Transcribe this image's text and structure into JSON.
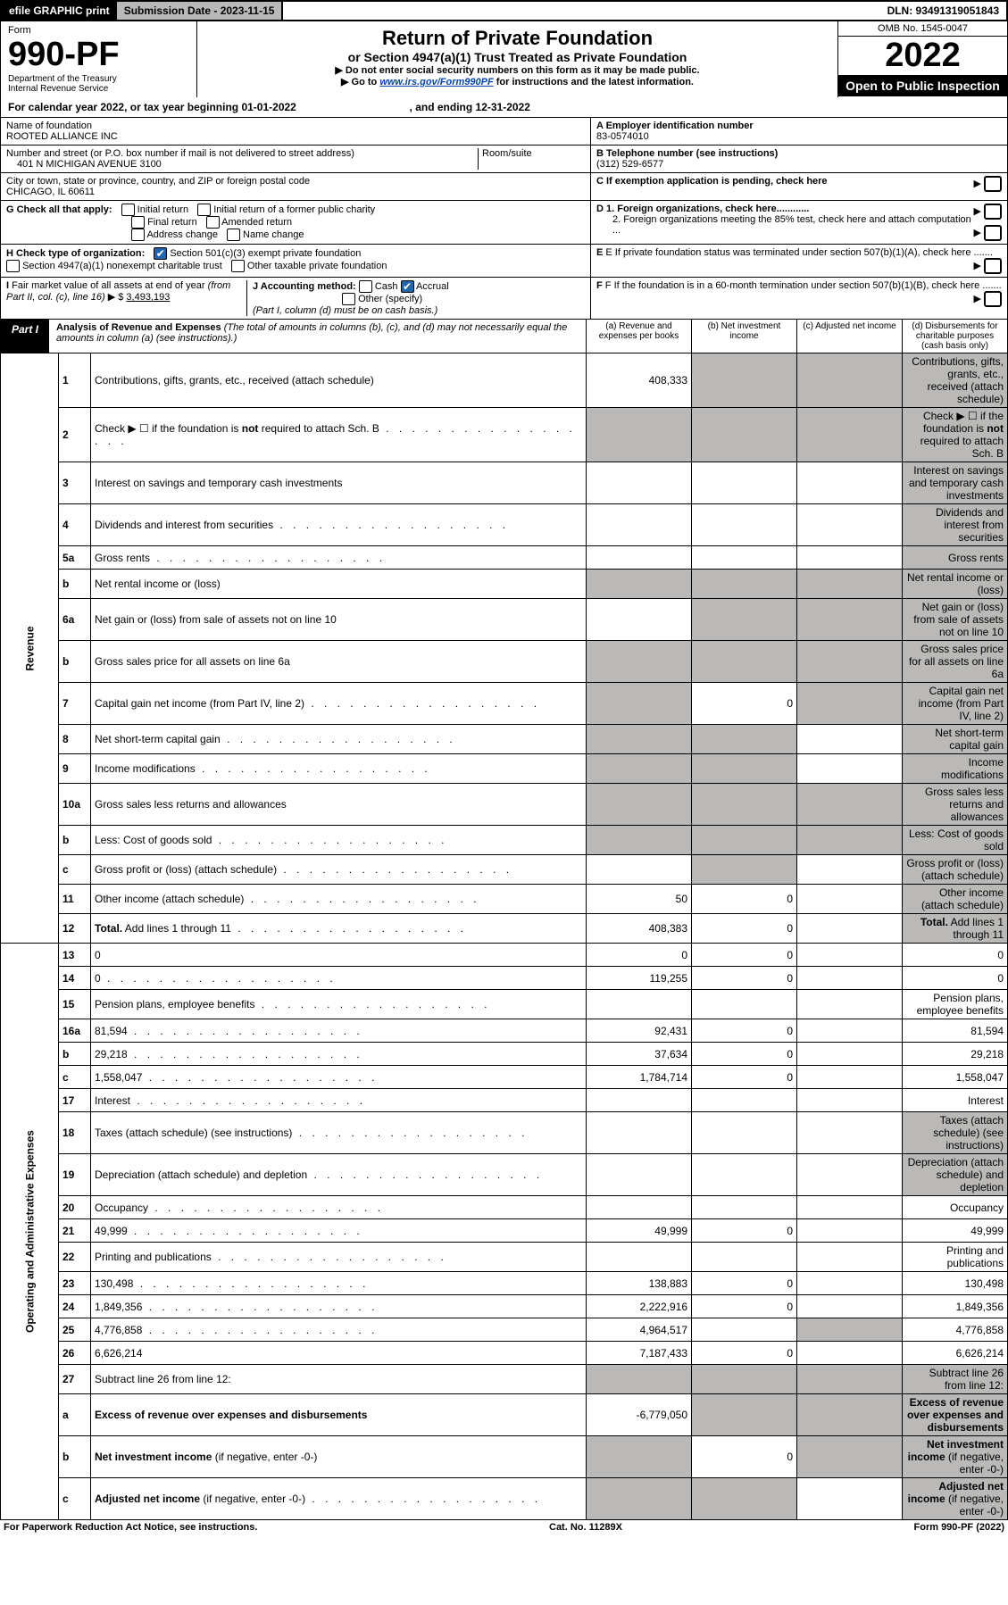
{
  "topbar": {
    "efile": "efile GRAPHIC print",
    "submission_label": "Submission Date - 2023-11-15",
    "dln_label": "DLN: 93491319051843"
  },
  "header": {
    "form_label": "Form",
    "form_number": "990-PF",
    "dept1": "Department of the Treasury",
    "dept2": "Internal Revenue Service",
    "title1": "Return of Private Foundation",
    "title2": "or Section 4947(a)(1) Trust Treated as Private Foundation",
    "instr1": "▶ Do not enter social security numbers on this form as it may be made public.",
    "instr2_pre": "▶ Go to ",
    "instr2_link": "www.irs.gov/Form990PF",
    "instr2_post": " for instructions and the latest information.",
    "omb": "OMB No. 1545-0047",
    "year": "2022",
    "open": "Open to Public Inspection"
  },
  "caly": {
    "pre": "For calendar year 2022, or tax year beginning ",
    "begin": "01-01-2022",
    "mid": " , and ending ",
    "end": "12-31-2022"
  },
  "entity": {
    "name_label": "Name of foundation",
    "name": "ROOTED ALLIANCE INC",
    "addr_label": "Number and street (or P.O. box number if mail is not delivered to street address)",
    "addr": "401 N MICHIGAN AVENUE 3100",
    "room_label": "Room/suite",
    "city_label": "City or town, state or province, country, and ZIP or foreign postal code",
    "city": "CHICAGO, IL  60611",
    "a_label": "A Employer identification number",
    "a_val": "83-0574010",
    "b_label": "B Telephone number (see instructions)",
    "b_val": "(312) 529-6577",
    "c_label": "C If exemption application is pending, check here",
    "d1_label": "D 1. Foreign organizations, check here............",
    "d2_label": "2. Foreign organizations meeting the 85% test, check here and attach computation ...",
    "e_label": "E  If private foundation status was terminated under section 507(b)(1)(A), check here .......",
    "f_label": "F  If the foundation is in a 60-month termination under section 507(b)(1)(B), check here .......",
    "g_label": "G Check all that apply:",
    "g_opts": [
      "Initial return",
      "Final return",
      "Address change",
      "Initial return of a former public charity",
      "Amended return",
      "Name change"
    ],
    "h_label": "H Check type of organization:",
    "h1": "Section 501(c)(3) exempt private foundation",
    "h2": "Section 4947(a)(1) nonexempt charitable trust",
    "h3": "Other taxable private foundation",
    "i_label": "I Fair market value of all assets at end of year (from Part II, col. (c), line 16) ▶ $",
    "i_val": "3,493,193",
    "j_label": "J Accounting method:",
    "j_cash": "Cash",
    "j_accrual": "Accrual",
    "j_other": "Other (specify)",
    "j_note": "(Part I, column (d) must be on cash basis.)"
  },
  "part1": {
    "label": "Part I",
    "title_bold": "Analysis of Revenue and Expenses ",
    "title_ital": "(The total of amounts in columns (b), (c), and (d) may not necessarily equal the amounts in column (a) (see instructions).)",
    "col_a": "(a)    Revenue and expenses per books",
    "col_b": "(b)    Net investment income",
    "col_c": "(c)   Adjusted net income",
    "col_d": "(d)   Disbursements for charitable purposes (cash basis only)"
  },
  "side_rev": "Revenue",
  "side_exp": "Operating and Administrative Expenses",
  "rows": [
    {
      "n": "1",
      "d": "Contributions, gifts, grants, etc., received (attach schedule)",
      "a": "408,333",
      "b_grey": true,
      "c_grey": true,
      "d_grey": true
    },
    {
      "n": "2",
      "d": "Check ▶ ☐ if the foundation is <b>not</b> required to attach Sch. B",
      "dots": true,
      "a_grey": true,
      "b_grey": true,
      "c_grey": true,
      "d_grey": true
    },
    {
      "n": "3",
      "d": "Interest on savings and temporary cash investments",
      "d_grey": true
    },
    {
      "n": "4",
      "d": "Dividends and interest from securities",
      "dots": true,
      "d_grey": true
    },
    {
      "n": "5a",
      "d": "Gross rents",
      "dots": true,
      "d_grey": true
    },
    {
      "n": "b",
      "d": "Net rental income or (loss)",
      "a_grey": true,
      "b_grey": true,
      "c_grey": true,
      "d_grey": true
    },
    {
      "n": "6a",
      "d": "Net gain or (loss) from sale of assets not on line 10",
      "b_grey": true,
      "c_grey": true,
      "d_grey": true
    },
    {
      "n": "b",
      "d": "Gross sales price for all assets on line 6a",
      "a_grey": true,
      "b_grey": true,
      "c_grey": true,
      "d_grey": true
    },
    {
      "n": "7",
      "d": "Capital gain net income (from Part IV, line 2)",
      "dots": true,
      "a_grey": true,
      "b": "0",
      "c_grey": true,
      "d_grey": true
    },
    {
      "n": "8",
      "d": "Net short-term capital gain",
      "dots": true,
      "a_grey": true,
      "b_grey": true,
      "d_grey": true
    },
    {
      "n": "9",
      "d": "Income modifications",
      "dots": true,
      "a_grey": true,
      "b_grey": true,
      "d_grey": true
    },
    {
      "n": "10a",
      "d": "Gross sales less returns and allowances",
      "a_grey": true,
      "b_grey": true,
      "c_grey": true,
      "d_grey": true
    },
    {
      "n": "b",
      "d": "Less: Cost of goods sold",
      "dots": true,
      "a_grey": true,
      "b_grey": true,
      "c_grey": true,
      "d_grey": true
    },
    {
      "n": "c",
      "d": "Gross profit or (loss) (attach schedule)",
      "dots": true,
      "b_grey": true,
      "d_grey": true
    },
    {
      "n": "11",
      "d": "Other income (attach schedule)",
      "dots": true,
      "a": "50",
      "b": "0",
      "d_grey": true
    },
    {
      "n": "12",
      "d": "<b>Total.</b> Add lines 1 through 11",
      "dots": true,
      "a": "408,383",
      "b": "0",
      "d_grey": true
    }
  ],
  "exp_rows": [
    {
      "n": "13",
      "d": "0",
      "a": "0",
      "b": "0"
    },
    {
      "n": "14",
      "d": "0",
      "dots": true,
      "a": "119,255",
      "b": "0"
    },
    {
      "n": "15",
      "d": "Pension plans, employee benefits",
      "dots": true
    },
    {
      "n": "16a",
      "d": "81,594",
      "dots": true,
      "a": "92,431",
      "b": "0"
    },
    {
      "n": "b",
      "d": "29,218",
      "dots": true,
      "a": "37,634",
      "b": "0"
    },
    {
      "n": "c",
      "d": "1,558,047",
      "dots": true,
      "a": "1,784,714",
      "b": "0"
    },
    {
      "n": "17",
      "d": "Interest",
      "dots": true
    },
    {
      "n": "18",
      "d": "Taxes (attach schedule) (see instructions)",
      "dots": true,
      "d_grey": true
    },
    {
      "n": "19",
      "d": "Depreciation (attach schedule) and depletion",
      "dots": true,
      "d_grey": true
    },
    {
      "n": "20",
      "d": "Occupancy",
      "dots": true
    },
    {
      "n": "21",
      "d": "49,999",
      "dots": true,
      "a": "49,999",
      "b": "0"
    },
    {
      "n": "22",
      "d": "Printing and publications",
      "dots": true
    },
    {
      "n": "23",
      "d": "130,498",
      "dots": true,
      "a": "138,883",
      "b": "0"
    },
    {
      "n": "24",
      "d": "1,849,356",
      "dots": true,
      "a": "2,222,916",
      "b": "0"
    },
    {
      "n": "25",
      "d": "4,776,858",
      "dots": true,
      "a": "4,964,517",
      "c_grey": true
    },
    {
      "n": "26",
      "d": "6,626,214",
      "a": "7,187,433",
      "b": "0"
    },
    {
      "n": "27",
      "d": "Subtract line 26 from line 12:",
      "a_grey": true,
      "b_grey": true,
      "c_grey": true,
      "d_grey": true
    },
    {
      "n": "a",
      "d": "<b>Excess of revenue over expenses and disbursements</b>",
      "a": "-6,779,050",
      "b_grey": true,
      "c_grey": true,
      "d_grey": true
    },
    {
      "n": "b",
      "d": "<b>Net investment income</b> (if negative, enter -0-)",
      "a_grey": true,
      "b": "0",
      "c_grey": true,
      "d_grey": true
    },
    {
      "n": "c",
      "d": "<b>Adjusted net income</b> (if negative, enter -0-)",
      "dots": true,
      "a_grey": true,
      "b_grey": true,
      "d_grey": true
    }
  ],
  "footer": {
    "left": "For Paperwork Reduction Act Notice, see instructions.",
    "mid": "Cat. No. 11289X",
    "right": "Form 990-PF (2022)"
  },
  "colors": {
    "black": "#000000",
    "grey": "#bab9b7",
    "link": "#0645ad",
    "check_blue": "#2166ac"
  }
}
